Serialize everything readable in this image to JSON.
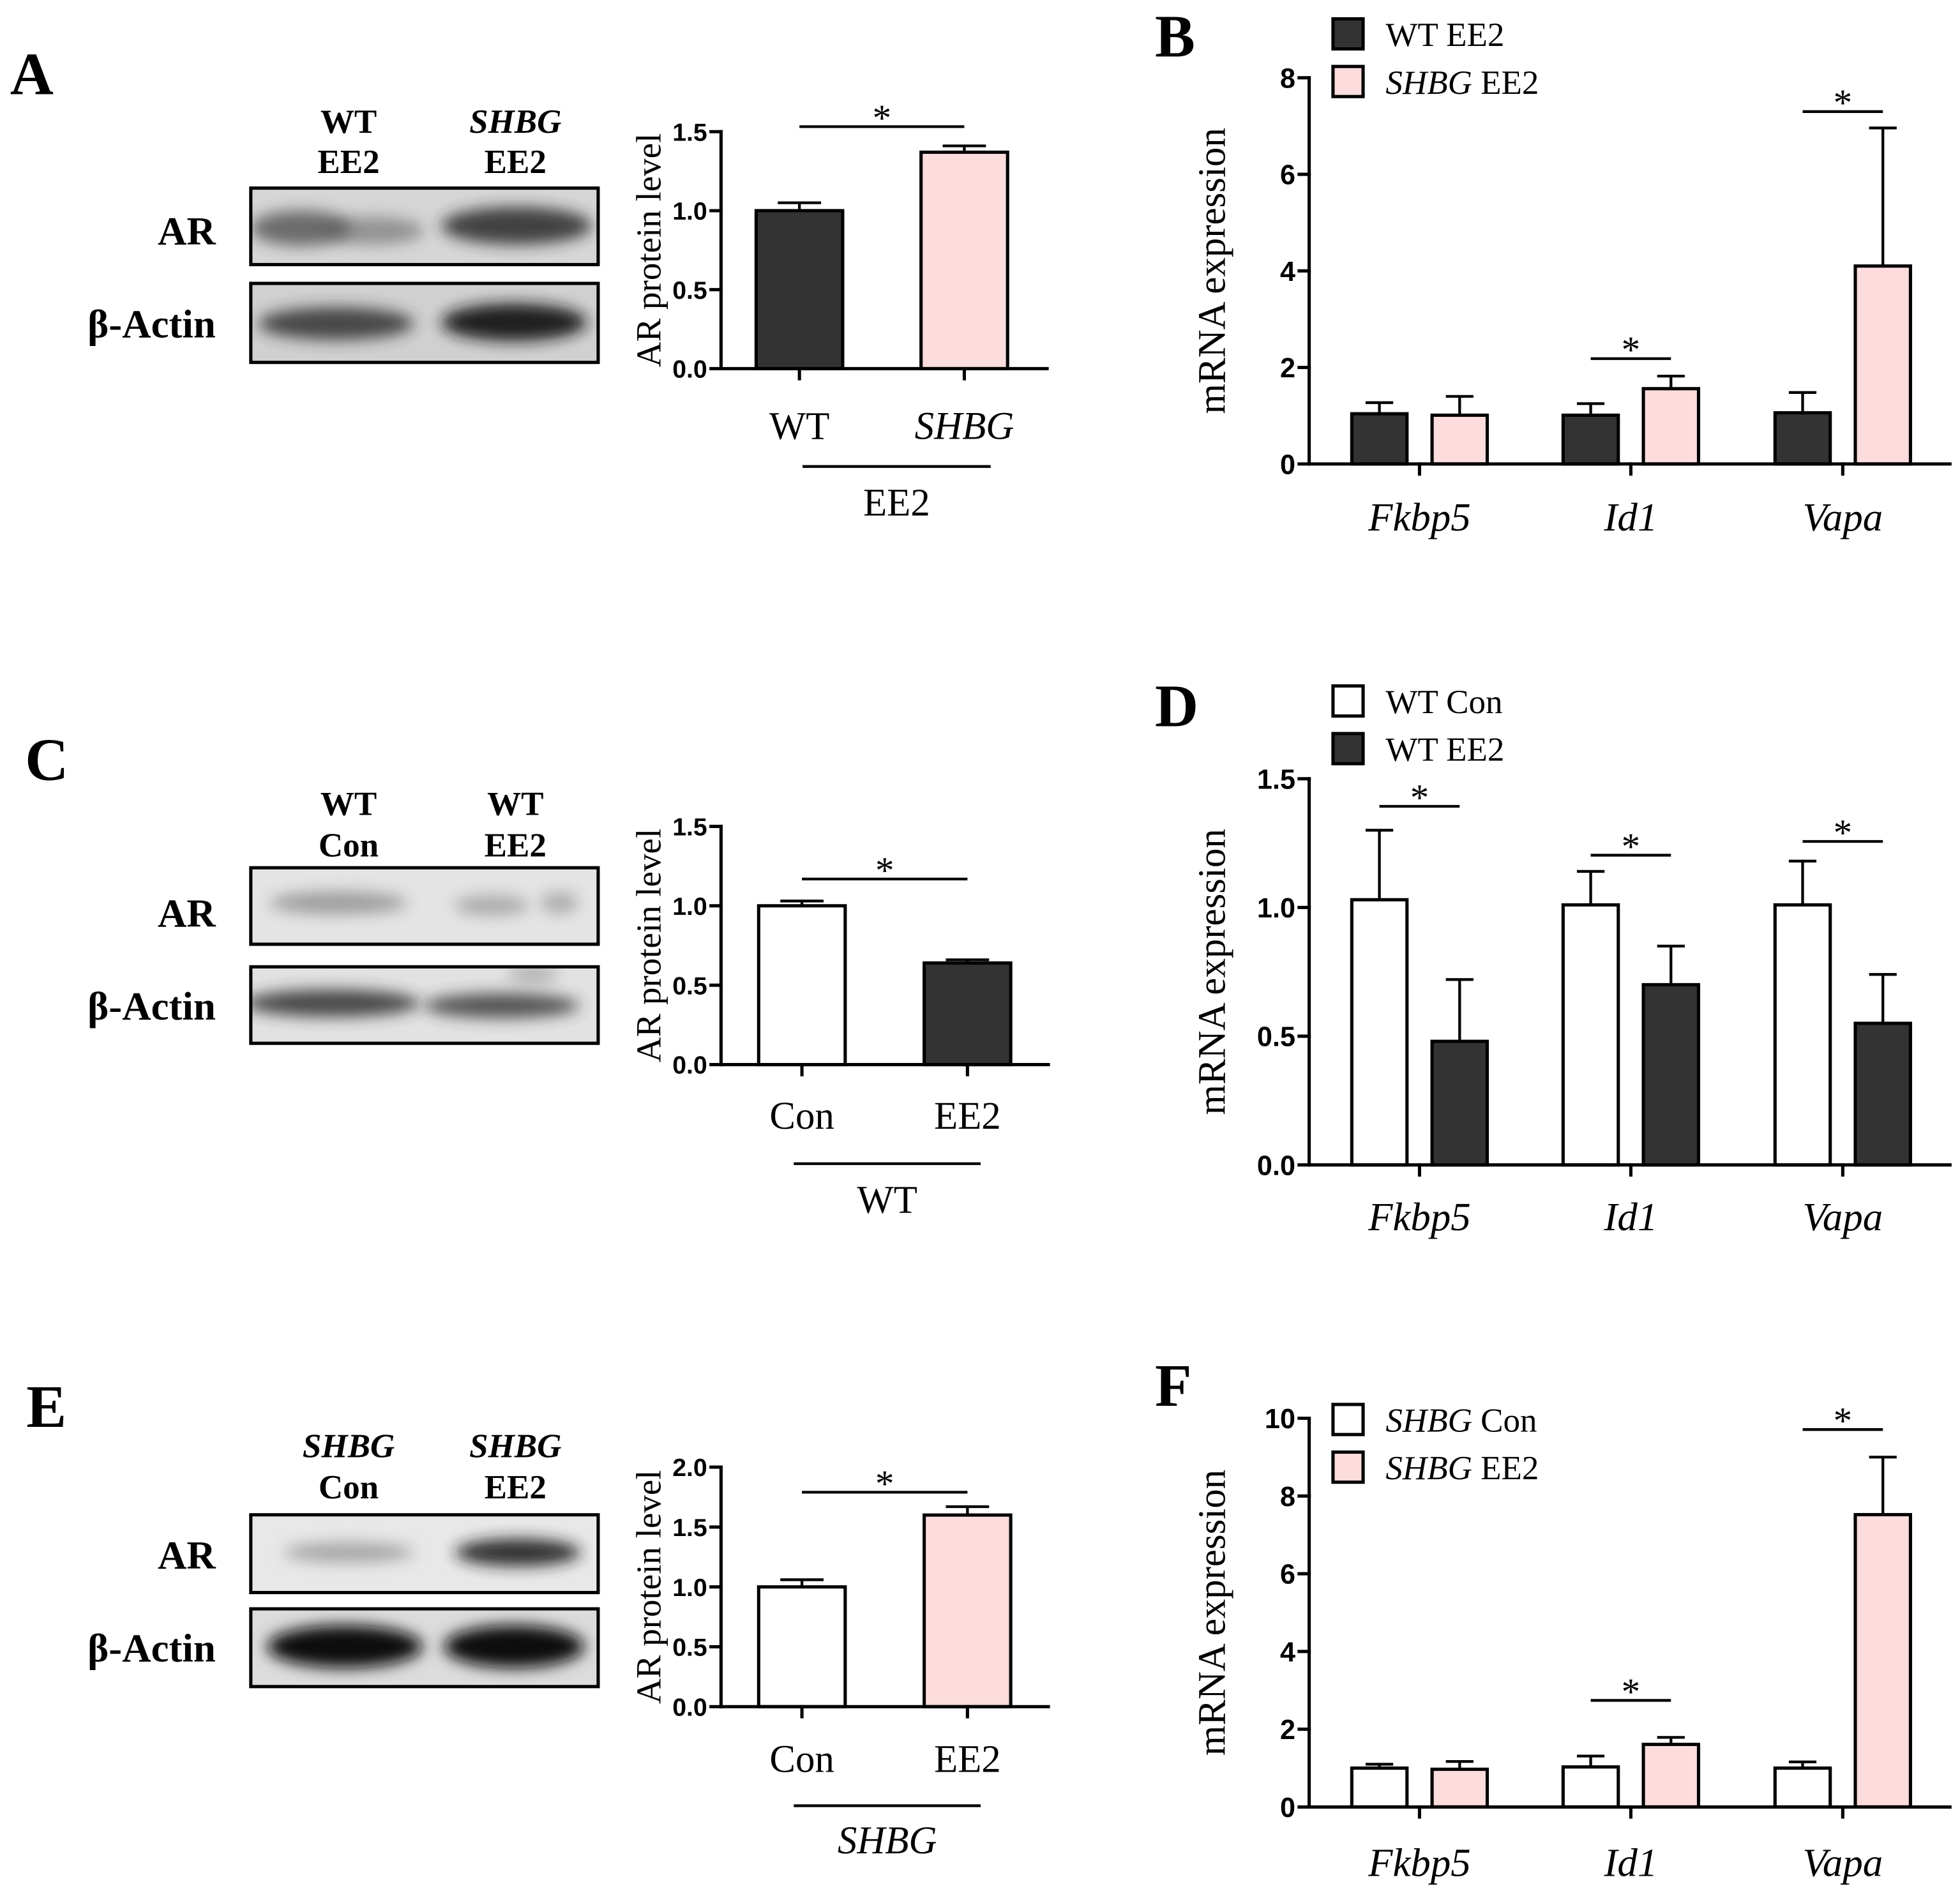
{
  "panels": {
    "A": {
      "letter": "A"
    },
    "B": {
      "letter": "B"
    },
    "C": {
      "letter": "C"
    },
    "D": {
      "letter": "D"
    },
    "E": {
      "letter": "E"
    },
    "F": {
      "letter": "F"
    }
  },
  "blots": {
    "A": {
      "lane_labels": [
        [
          "WT",
          "EE2"
        ],
        [
          "SHBG",
          "EE2"
        ]
      ],
      "rows": [
        "AR",
        "β-Actin"
      ]
    },
    "C": {
      "lane_labels": [
        [
          "WT",
          "Con"
        ],
        [
          "WT",
          "EE2"
        ]
      ],
      "rows": [
        "AR",
        "β-Actin"
      ]
    },
    "E": {
      "lane_labels": [
        [
          "SHBG",
          "Con"
        ],
        [
          "SHBG",
          "EE2"
        ]
      ],
      "rows": [
        "AR",
        "β-Actin"
      ]
    }
  },
  "colors": {
    "dark_bar": "#333333",
    "pink_bar": "#fcdcdc",
    "white_bar": "#ffffff"
  },
  "chart_data": [
    {
      "type": "bar",
      "ylabel": "AR protein level",
      "categories": [
        "WT",
        "SHBG"
      ],
      "category_italic": [
        false,
        true
      ],
      "values": [
        1.0,
        1.37
      ],
      "errors": [
        0.05,
        0.04
      ],
      "bar_colors": [
        "#333333",
        "#fcdcdc"
      ],
      "ylim": [
        0,
        1.5
      ],
      "yticks": [
        "0.0",
        "0.5",
        "1.0",
        "1.5"
      ],
      "group_label": "EE2",
      "group_label_italic": false,
      "significance": [
        {
          "between": [
            0,
            1
          ],
          "label": "*"
        }
      ]
    },
    {
      "type": "bar",
      "ylabel": "mRNA expression",
      "categories": [
        "Fkbp5",
        "Id1",
        "Vapa"
      ],
      "category_italic": [
        true,
        true,
        true
      ],
      "series": [
        {
          "name_parts": [
            {
              "text": "WT EE2",
              "italic": false
            }
          ],
          "color": "#333333",
          "values": [
            1.04,
            1.01,
            1.06
          ],
          "errors": [
            0.23,
            0.24,
            0.42
          ]
        },
        {
          "name_parts": [
            {
              "text": "SHBG",
              "italic": true
            },
            {
              "text": "EE2",
              "italic": false
            }
          ],
          "color": "#fcdcdc",
          "values": [
            1.01,
            1.56,
            4.1
          ],
          "errors": [
            0.39,
            0.26,
            2.86
          ]
        }
      ],
      "ylim": [
        0,
        8
      ],
      "yticks": [
        "0",
        "2",
        "4",
        "6",
        "8"
      ],
      "significance": [
        {
          "category": 1,
          "label": "*"
        },
        {
          "category": 2,
          "label": "*"
        }
      ]
    },
    {
      "type": "bar",
      "ylabel": "AR protein level",
      "categories": [
        "Con",
        "EE2"
      ],
      "category_italic": [
        false,
        false
      ],
      "values": [
        1.0,
        0.64
      ],
      "errors": [
        0.03,
        0.02
      ],
      "bar_colors": [
        "#ffffff",
        "#333333"
      ],
      "ylim": [
        0,
        1.5
      ],
      "yticks": [
        "0.0",
        "0.5",
        "1.0",
        "1.5"
      ],
      "group_label": "WT",
      "group_label_italic": false,
      "significance": [
        {
          "between": [
            0,
            1
          ],
          "label": "*"
        }
      ]
    },
    {
      "type": "bar",
      "ylabel": "mRNA expression",
      "categories": [
        "Fkbp5",
        "Id1",
        "Vapa"
      ],
      "category_italic": [
        true,
        true,
        true
      ],
      "series": [
        {
          "name_parts": [
            {
              "text": "WT Con",
              "italic": false
            }
          ],
          "color": "#ffffff",
          "values": [
            1.03,
            1.01,
            1.01
          ],
          "errors": [
            0.27,
            0.13,
            0.17
          ]
        },
        {
          "name_parts": [
            {
              "text": "WT EE2",
              "italic": false
            }
          ],
          "color": "#333333",
          "values": [
            0.48,
            0.7,
            0.55
          ],
          "errors": [
            0.24,
            0.15,
            0.19
          ]
        }
      ],
      "ylim": [
        0,
        1.5
      ],
      "yticks": [
        "0.0",
        "0.5",
        "1.0",
        "1.5"
      ],
      "significance": [
        {
          "category": 0,
          "label": "*"
        },
        {
          "category": 1,
          "label": "*"
        },
        {
          "category": 2,
          "label": "*"
        }
      ]
    },
    {
      "type": "bar",
      "ylabel": "AR protein level",
      "categories": [
        "Con",
        "EE2"
      ],
      "category_italic": [
        false,
        false
      ],
      "values": [
        1.0,
        1.6
      ],
      "errors": [
        0.06,
        0.07
      ],
      "bar_colors": [
        "#ffffff",
        "#fcdcdc"
      ],
      "ylim": [
        0,
        2.0
      ],
      "yticks": [
        "0.0",
        "0.5",
        "1.0",
        "1.5",
        "2.0"
      ],
      "group_label": "SHBG",
      "group_label_italic": true,
      "significance": [
        {
          "between": [
            0,
            1
          ],
          "label": "*"
        }
      ]
    },
    {
      "type": "bar",
      "ylabel": "mRNA expression",
      "categories": [
        "Fkbp5",
        "Id1",
        "Vapa"
      ],
      "category_italic": [
        true,
        true,
        true
      ],
      "series": [
        {
          "name_parts": [
            {
              "text": "SHBG",
              "italic": true
            },
            {
              "text": "Con",
              "italic": false
            }
          ],
          "color": "#ffffff",
          "values": [
            1.0,
            1.03,
            1.0
          ],
          "errors": [
            0.1,
            0.28,
            0.16
          ]
        },
        {
          "name_parts": [
            {
              "text": "SHBG",
              "italic": true
            },
            {
              "text": "EE2",
              "italic": false
            }
          ],
          "color": "#fcdcdc",
          "values": [
            0.97,
            1.61,
            7.52
          ],
          "errors": [
            0.2,
            0.18,
            1.48
          ]
        }
      ],
      "ylim": [
        0,
        10
      ],
      "yticks": [
        "0",
        "2",
        "4",
        "6",
        "8",
        "10"
      ],
      "significance": [
        {
          "category": 1,
          "label": "*"
        },
        {
          "category": 2,
          "label": "*"
        }
      ]
    }
  ]
}
